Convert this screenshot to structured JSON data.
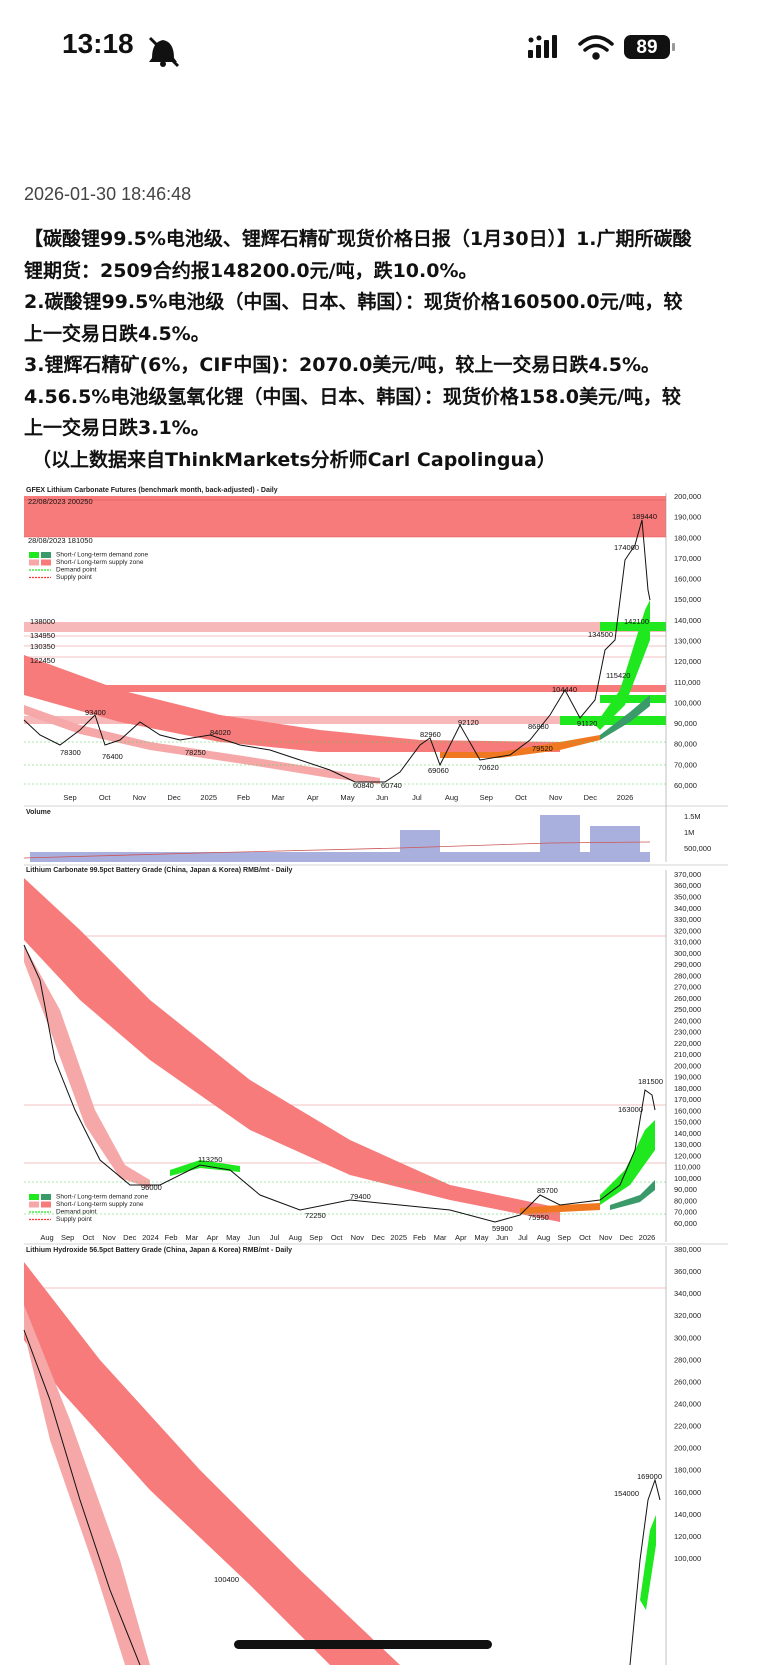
{
  "status_bar": {
    "time": "13:18",
    "battery": "89"
  },
  "post": {
    "timestamp": "2026-01-30 18:46:48",
    "paragraphs": [
      "【碳酸锂99.5%电池级、锂辉石精矿现货价格日报（1月30日）】1.广期所碳酸锂期货：2509合约报148200.0元/吨，跌10.0%。",
      "2.碳酸锂99.5%电池级（中国、日本、韩国）：现货价格160500.0元/吨，较上一交易日跌4.5%。",
      "3.锂辉石精矿(6%，CIF中国)：2070.0美元/吨，较上一交易日跌4.5%。",
      "4.56.5%电池级氢氧化锂（中国、日本、韩国）：现货价格158.0美元/吨，较上一交易日跌3.1%。",
      "（以上数据来自ThinkMarkets分析师Carl Capolingua）"
    ]
  },
  "legend": [
    "Short-/ Long-term demand zone",
    "Short-/ Long-term supply zone",
    "Demand point",
    "Supply point"
  ],
  "charts": [
    {
      "title": "GFEX Lithium Carbonate Futures (benchmark month, back-adjusted) - Daily",
      "yticks": [
        "200,000",
        "190,000",
        "180,000",
        "170,000",
        "160,000",
        "150,000",
        "140,000",
        "130,000",
        "120,000",
        "110,000",
        "100,000",
        "90,000",
        "80,000",
        "70,000",
        "60,000"
      ],
      "xticks": [
        "Sep",
        "Oct",
        "Nov",
        "Dec",
        "2025",
        "Feb",
        "Mar",
        "Apr",
        "May",
        "Jun",
        "Jul",
        "Aug",
        "Sep",
        "Oct",
        "Nov",
        "Dec",
        "2026"
      ],
      "annotations": [
        "22/08/2023 200250",
        "28/08/2023 181050",
        "138000",
        "134950",
        "130350",
        "122450",
        "93400",
        "78300",
        "76400",
        "84020",
        "78250",
        "60840",
        "60740",
        "82960",
        "92120",
        "69060",
        "70620",
        "86880",
        "79520",
        "104440",
        "91120",
        "134500",
        "115420",
        "174060",
        "189440",
        "142100"
      ],
      "volume": {
        "title": "Volume",
        "yticks": [
          "1.5M",
          "1M",
          "500,000"
        ]
      }
    },
    {
      "title": "Lithium Carbonate 99.5pct Battery Grade (China, Japan & Korea) RMB/mt - Daily",
      "yticks": [
        "370,000",
        "360,000",
        "350,000",
        "340,000",
        "330,000",
        "320,000",
        "310,000",
        "300,000",
        "290,000",
        "280,000",
        "270,000",
        "260,000",
        "250,000",
        "240,000",
        "230,000",
        "220,000",
        "210,000",
        "200,000",
        "190,000",
        "180,000",
        "170,000",
        "160,000",
        "150,000",
        "140,000",
        "130,000",
        "120,000",
        "110,000",
        "100,000",
        "90,000",
        "80,000",
        "70,000",
        "60,000"
      ],
      "xticks": [
        "Aug",
        "Sep",
        "Oct",
        "Nov",
        "Dec",
        "2024",
        "Feb",
        "Mar",
        "Apr",
        "May",
        "Jun",
        "Jul",
        "Aug",
        "Sep",
        "Oct",
        "Nov",
        "Dec",
        "2025",
        "Feb",
        "Mar",
        "Apr",
        "May",
        "Jun",
        "Jul",
        "Aug",
        "Sep",
        "Oct",
        "Nov",
        "Dec",
        "2026"
      ],
      "annotations": [
        "113250",
        "96000",
        "72250",
        "79400",
        "59900",
        "85700",
        "75950",
        "181500",
        "163000"
      ]
    },
    {
      "title": "Lithium Hydroxide 56.5pct Battery Grade (China, Japan & Korea) RMB/mt - Daily",
      "yticks": [
        "380,000",
        "360,000",
        "340,000",
        "320,000",
        "300,000",
        "280,000",
        "260,000",
        "240,000",
        "220,000",
        "200,000",
        "180,000",
        "160,000",
        "140,000",
        "120,000",
        "100,000"
      ],
      "annotations": [
        "169000",
        "154000",
        "100400"
      ]
    }
  ]
}
